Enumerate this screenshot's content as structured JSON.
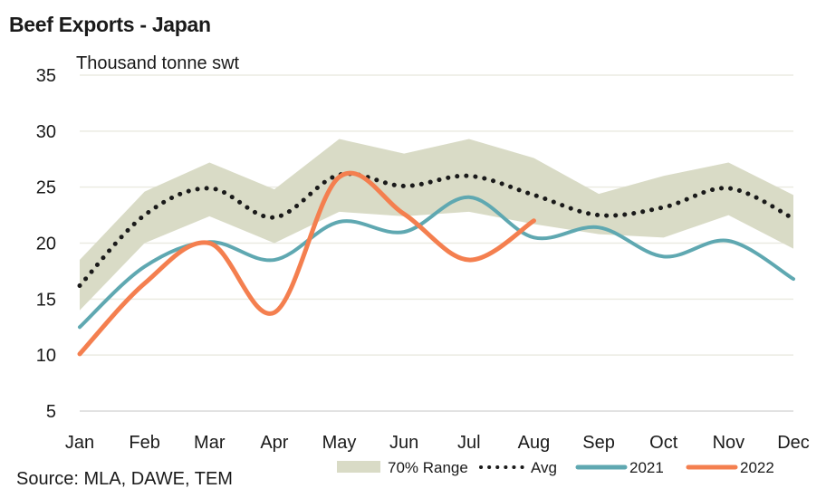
{
  "title": "Beef Exports - Japan",
  "source": "Source: MLA, DAWE, TEM",
  "colors": {
    "range": "#d9dbc6",
    "avg": "#1a1a1a",
    "s2021": "#5fa8b1",
    "s2022": "#f47f4f",
    "grid": "#ebebe2"
  },
  "chart_data": {
    "type": "line",
    "title": "Beef Exports - Japan",
    "ylabel": "Thousand tonne swt",
    "xlabel": "",
    "ylim": [
      5,
      35
    ],
    "yticks": [
      5,
      10,
      15,
      20,
      25,
      30,
      35
    ],
    "grid": true,
    "legend_position": "bottom-right",
    "categories": [
      "Jan",
      "Feb",
      "Mar",
      "Apr",
      "May",
      "Jun",
      "Jul",
      "Aug",
      "Sep",
      "Oct",
      "Nov",
      "Dec"
    ],
    "range": {
      "name": "70% Range",
      "lower": [
        14.0,
        20.0,
        22.4,
        20.0,
        22.8,
        22.4,
        22.8,
        21.7,
        20.8,
        20.5,
        22.5,
        19.5
      ],
      "upper": [
        18.5,
        24.6,
        27.2,
        24.8,
        29.3,
        28.0,
        29.3,
        27.6,
        24.4,
        26.0,
        27.2,
        24.3
      ]
    },
    "series": [
      {
        "name": "Avg",
        "style": "dotted",
        "values": [
          16.2,
          22.5,
          24.9,
          22.3,
          26.1,
          25.1,
          26.0,
          24.3,
          22.5,
          23.2,
          24.9,
          22.2
        ]
      },
      {
        "name": "2021",
        "style": "solid",
        "values": [
          12.5,
          17.9,
          20.1,
          18.5,
          21.9,
          21.0,
          24.1,
          20.5,
          21.4,
          18.8,
          20.2,
          16.8
        ]
      },
      {
        "name": "2022",
        "style": "solid",
        "values": [
          10.1,
          16.4,
          20.0,
          13.8,
          25.9,
          22.6,
          18.5,
          22.0
        ]
      }
    ]
  },
  "legend": [
    {
      "key": "range",
      "label": "70% Range"
    },
    {
      "key": "avg",
      "label": "Avg"
    },
    {
      "key": "s2021",
      "label": "2021"
    },
    {
      "key": "s2022",
      "label": "2022"
    }
  ]
}
